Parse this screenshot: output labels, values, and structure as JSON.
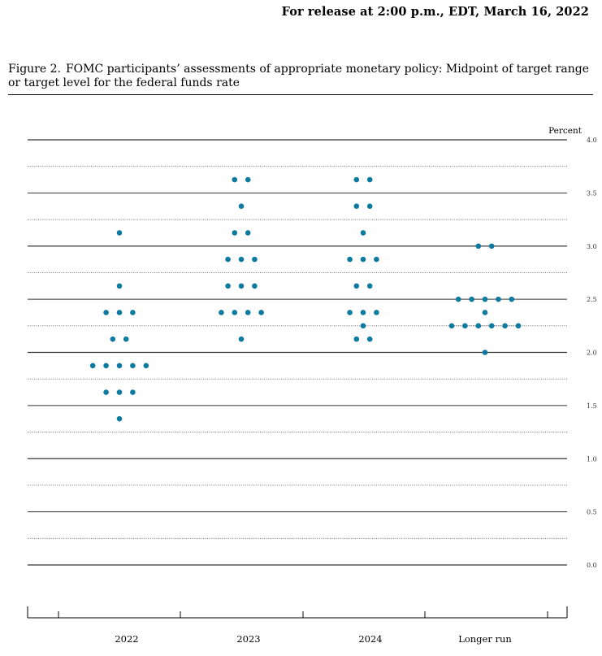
{
  "header": {
    "release": "For release at 2:00 p.m., EDT, March 16, 2022"
  },
  "figure": {
    "label": "Figure 2.",
    "title": "FOMC participants’ assessments of appropriate monetary policy: Midpoint of target range or target level for the federal funds rate"
  },
  "chart_data": {
    "type": "scatter",
    "title": "",
    "ylabel": "Percent",
    "xlabel": "",
    "ylim": [
      0.0,
      4.0
    ],
    "y_ticks": [
      "0.0",
      "0.5",
      "1.0",
      "1.5",
      "2.0",
      "2.5",
      "3.0",
      "3.5",
      "4.0"
    ],
    "grid": true,
    "categories": [
      "2022",
      "2023",
      "2024",
      "Longer run"
    ],
    "dot_color": "#0e7aa0",
    "groups": [
      {
        "category": "2022",
        "points": [
          {
            "y": 3.125,
            "count": 1
          },
          {
            "y": 2.625,
            "count": 1
          },
          {
            "y": 2.375,
            "count": 3
          },
          {
            "y": 2.125,
            "count": 2
          },
          {
            "y": 1.875,
            "count": 5
          },
          {
            "y": 1.625,
            "count": 3
          },
          {
            "y": 1.375,
            "count": 1
          }
        ]
      },
      {
        "category": "2023",
        "points": [
          {
            "y": 3.625,
            "count": 2
          },
          {
            "y": 3.375,
            "count": 1
          },
          {
            "y": 3.125,
            "count": 2
          },
          {
            "y": 2.875,
            "count": 3
          },
          {
            "y": 2.625,
            "count": 3
          },
          {
            "y": 2.375,
            "count": 4
          },
          {
            "y": 2.125,
            "count": 1
          }
        ]
      },
      {
        "category": "2024",
        "points": [
          {
            "y": 3.625,
            "count": 2
          },
          {
            "y": 3.375,
            "count": 2
          },
          {
            "y": 3.125,
            "count": 1
          },
          {
            "y": 2.875,
            "count": 3
          },
          {
            "y": 2.625,
            "count": 2
          },
          {
            "y": 2.375,
            "count": 3
          },
          {
            "y": 2.25,
            "count": 1
          },
          {
            "y": 2.125,
            "count": 2
          }
        ]
      },
      {
        "category": "Longer run",
        "points": [
          {
            "y": 3.0,
            "count": 2
          },
          {
            "y": 2.5,
            "count": 5
          },
          {
            "y": 2.375,
            "count": 1
          },
          {
            "y": 2.25,
            "count": 6
          },
          {
            "y": 2.0,
            "count": 1
          }
        ]
      }
    ]
  }
}
